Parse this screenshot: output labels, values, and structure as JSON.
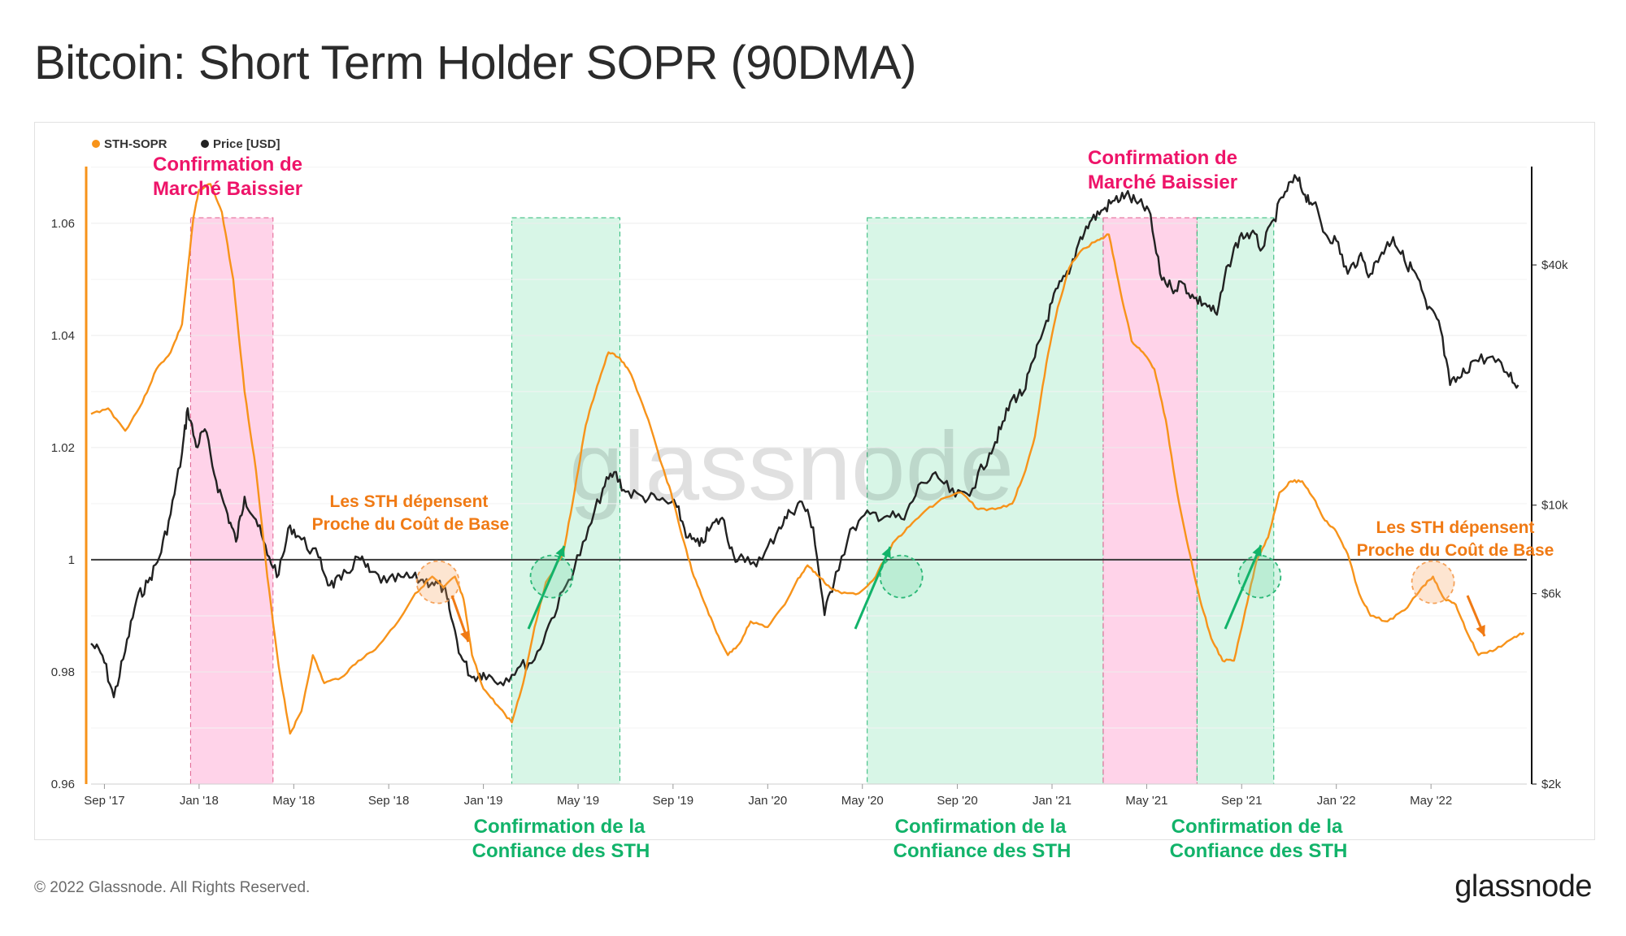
{
  "title": "Bitcoin: Short Term Holder SOPR (90DMA)",
  "footer": {
    "copyright": "© 2022 Glassnode. All Rights Reserved.",
    "brand": "glassnode"
  },
  "watermark": "glassnode",
  "colors": {
    "sopr": "#f7931a",
    "price": "#222222",
    "bear": "#ff9dcf",
    "confidence": "#7ee0ae",
    "red_text": "#ee1469",
    "orange_text": "#f07a14",
    "green_text": "#12b36a"
  },
  "chart_data": {
    "type": "line",
    "legend": [
      {
        "name": "STH-SOPR",
        "color": "#f7931a"
      },
      {
        "name": "Price [USD]",
        "color": "#222222"
      }
    ],
    "x_range": [
      2017.62,
      2022.67
    ],
    "x_ticks": [
      {
        "t": 2017.667,
        "label": "Sep '17"
      },
      {
        "t": 2018.0,
        "label": "Jan '18"
      },
      {
        "t": 2018.333,
        "label": "May '18"
      },
      {
        "t": 2018.667,
        "label": "Sep '18"
      },
      {
        "t": 2019.0,
        "label": "Jan '19"
      },
      {
        "t": 2019.333,
        "label": "May '19"
      },
      {
        "t": 2019.667,
        "label": "Sep '19"
      },
      {
        "t": 2020.0,
        "label": "Jan '20"
      },
      {
        "t": 2020.333,
        "label": "May '20"
      },
      {
        "t": 2020.667,
        "label": "Sep '20"
      },
      {
        "t": 2021.0,
        "label": "Jan '21"
      },
      {
        "t": 2021.333,
        "label": "May '21"
      },
      {
        "t": 2021.667,
        "label": "Sep '21"
      },
      {
        "t": 2022.0,
        "label": "Jan '22"
      },
      {
        "t": 2022.333,
        "label": "May '22"
      }
    ],
    "y_left": {
      "range": [
        0.96,
        1.072
      ],
      "ticks": [
        {
          "v": 0.96,
          "label": "0.96"
        },
        {
          "v": 0.98,
          "label": "0.98"
        },
        {
          "v": 1.0,
          "label": "1"
        },
        {
          "v": 1.02,
          "label": "1.02"
        },
        {
          "v": 1.04,
          "label": "1.04"
        },
        {
          "v": 1.06,
          "label": "1.06"
        }
      ]
    },
    "y_right": {
      "scale": "log",
      "range": [
        2000,
        75000
      ],
      "ticks": [
        {
          "v": 2000,
          "label": "$2k"
        },
        {
          "v": 6000,
          "label": "$6k"
        },
        {
          "v": 10000,
          "label": "$10k"
        },
        {
          "v": 40000,
          "label": "$40k"
        }
      ]
    },
    "reference_line": 1.0,
    "series": [
      {
        "name": "STH-SOPR",
        "axis": "left",
        "points": [
          [
            2017.62,
            1.026
          ],
          [
            2017.68,
            1.027
          ],
          [
            2017.74,
            1.023
          ],
          [
            2017.8,
            1.028
          ],
          [
            2017.85,
            1.034
          ],
          [
            2017.9,
            1.037
          ],
          [
            2017.94,
            1.042
          ],
          [
            2017.98,
            1.061
          ],
          [
            2018.0,
            1.066
          ],
          [
            2018.04,
            1.067
          ],
          [
            2018.08,
            1.062
          ],
          [
            2018.12,
            1.05
          ],
          [
            2018.16,
            1.03
          ],
          [
            2018.2,
            1.016
          ],
          [
            2018.24,
            0.997
          ],
          [
            2018.28,
            0.981
          ],
          [
            2018.32,
            0.969
          ],
          [
            2018.36,
            0.973
          ],
          [
            2018.4,
            0.983
          ],
          [
            2018.44,
            0.978
          ],
          [
            2018.5,
            0.979
          ],
          [
            2018.56,
            0.982
          ],
          [
            2018.62,
            0.984
          ],
          [
            2018.7,
            0.989
          ],
          [
            2018.76,
            0.994
          ],
          [
            2018.82,
            0.997
          ],
          [
            2018.86,
            0.995
          ],
          [
            2018.9,
            0.997
          ],
          [
            2018.93,
            0.993
          ],
          [
            2018.96,
            0.983
          ],
          [
            2019.0,
            0.977
          ],
          [
            2019.05,
            0.974
          ],
          [
            2019.1,
            0.971
          ],
          [
            2019.14,
            0.978
          ],
          [
            2019.18,
            0.988
          ],
          [
            2019.22,
            0.996
          ],
          [
            2019.28,
            1.001
          ],
          [
            2019.32,
            1.012
          ],
          [
            2019.36,
            1.024
          ],
          [
            2019.4,
            1.031
          ],
          [
            2019.44,
            1.037
          ],
          [
            2019.48,
            1.036
          ],
          [
            2019.52,
            1.033
          ],
          [
            2019.58,
            1.025
          ],
          [
            2019.62,
            1.018
          ],
          [
            2019.66,
            1.012
          ],
          [
            2019.7,
            1.004
          ],
          [
            2019.74,
            0.997
          ],
          [
            2019.78,
            0.992
          ],
          [
            2019.82,
            0.987
          ],
          [
            2019.86,
            0.983
          ],
          [
            2019.9,
            0.985
          ],
          [
            2019.94,
            0.989
          ],
          [
            2020.0,
            0.988
          ],
          [
            2020.06,
            0.992
          ],
          [
            2020.1,
            0.996
          ],
          [
            2020.14,
            0.999
          ],
          [
            2020.18,
            0.997
          ],
          [
            2020.22,
            0.995
          ],
          [
            2020.26,
            0.994
          ],
          [
            2020.32,
            0.994
          ],
          [
            2020.38,
            0.997
          ],
          [
            2020.44,
            1.003
          ],
          [
            2020.5,
            1.006
          ],
          [
            2020.56,
            1.009
          ],
          [
            2020.62,
            1.011
          ],
          [
            2020.68,
            1.012
          ],
          [
            2020.74,
            1.009
          ],
          [
            2020.8,
            1.009
          ],
          [
            2020.86,
            1.01
          ],
          [
            2020.9,
            1.015
          ],
          [
            2020.94,
            1.022
          ],
          [
            2020.98,
            1.035
          ],
          [
            2021.02,
            1.045
          ],
          [
            2021.06,
            1.052
          ],
          [
            2021.1,
            1.055
          ],
          [
            2021.16,
            1.057
          ],
          [
            2021.2,
            1.058
          ],
          [
            2021.24,
            1.048
          ],
          [
            2021.28,
            1.039
          ],
          [
            2021.32,
            1.037
          ],
          [
            2021.36,
            1.034
          ],
          [
            2021.4,
            1.025
          ],
          [
            2021.44,
            1.012
          ],
          [
            2021.48,
            1.002
          ],
          [
            2021.52,
            0.993
          ],
          [
            2021.56,
            0.986
          ],
          [
            2021.6,
            0.982
          ],
          [
            2021.64,
            0.982
          ],
          [
            2021.68,
            0.991
          ],
          [
            2021.72,
            1.0
          ],
          [
            2021.76,
            1.004
          ],
          [
            2021.8,
            1.012
          ],
          [
            2021.84,
            1.014
          ],
          [
            2021.88,
            1.014
          ],
          [
            2021.92,
            1.011
          ],
          [
            2021.96,
            1.007
          ],
          [
            2022.0,
            1.005
          ],
          [
            2022.04,
            1.001
          ],
          [
            2022.08,
            0.994
          ],
          [
            2022.12,
            0.99
          ],
          [
            2022.18,
            0.989
          ],
          [
            2022.24,
            0.991
          ],
          [
            2022.3,
            0.995
          ],
          [
            2022.34,
            0.997
          ],
          [
            2022.38,
            0.993
          ],
          [
            2022.42,
            0.992
          ],
          [
            2022.46,
            0.987
          ],
          [
            2022.5,
            0.983
          ],
          [
            2022.56,
            0.984
          ],
          [
            2022.62,
            0.986
          ],
          [
            2022.66,
            0.987
          ]
        ]
      },
      {
        "name": "Price [USD]",
        "axis": "right",
        "points": [
          [
            2017.62,
            4500
          ],
          [
            2017.66,
            4200
          ],
          [
            2017.7,
            3300
          ],
          [
            2017.74,
            4300
          ],
          [
            2017.78,
            5800
          ],
          [
            2017.82,
            6400
          ],
          [
            2017.86,
            7400
          ],
          [
            2017.9,
            9500
          ],
          [
            2017.94,
            13500
          ],
          [
            2017.96,
            17500
          ],
          [
            2017.99,
            14000
          ],
          [
            2018.02,
            15500
          ],
          [
            2018.06,
            11500
          ],
          [
            2018.1,
            9500
          ],
          [
            2018.13,
            8100
          ],
          [
            2018.16,
            10500
          ],
          [
            2018.2,
            9200
          ],
          [
            2018.24,
            7500
          ],
          [
            2018.28,
            6700
          ],
          [
            2018.32,
            8900
          ],
          [
            2018.36,
            8200
          ],
          [
            2018.42,
            7400
          ],
          [
            2018.46,
            6300
          ],
          [
            2018.5,
            6500
          ],
          [
            2018.56,
            7400
          ],
          [
            2018.6,
            6800
          ],
          [
            2018.66,
            6400
          ],
          [
            2018.72,
            6600
          ],
          [
            2018.78,
            6500
          ],
          [
            2018.82,
            6400
          ],
          [
            2018.86,
            6200
          ],
          [
            2018.88,
            5500
          ],
          [
            2018.92,
            4200
          ],
          [
            2018.96,
            3700
          ],
          [
            2019.0,
            3800
          ],
          [
            2019.06,
            3600
          ],
          [
            2019.12,
            3900
          ],
          [
            2019.18,
            4100
          ],
          [
            2019.24,
            5200
          ],
          [
            2019.3,
            6500
          ],
          [
            2019.36,
            8200
          ],
          [
            2019.42,
            11000
          ],
          [
            2019.46,
            12100
          ],
          [
            2019.5,
            10800
          ],
          [
            2019.56,
            10500
          ],
          [
            2019.62,
            10300
          ],
          [
            2019.68,
            9900
          ],
          [
            2019.72,
            8300
          ],
          [
            2019.76,
            7900
          ],
          [
            2019.8,
            8800
          ],
          [
            2019.84,
            9300
          ],
          [
            2019.88,
            7500
          ],
          [
            2019.92,
            7200
          ],
          [
            2019.98,
            7300
          ],
          [
            2020.04,
            8800
          ],
          [
            2020.08,
            9600
          ],
          [
            2020.12,
            10200
          ],
          [
            2020.16,
            8800
          ],
          [
            2020.2,
            5300
          ],
          [
            2020.24,
            6800
          ],
          [
            2020.3,
            8800
          ],
          [
            2020.36,
            9500
          ],
          [
            2020.42,
            9400
          ],
          [
            2020.48,
            9200
          ],
          [
            2020.54,
            11400
          ],
          [
            2020.6,
            11700
          ],
          [
            2020.66,
            10500
          ],
          [
            2020.72,
            11000
          ],
          [
            2020.78,
            13500
          ],
          [
            2020.82,
            15500
          ],
          [
            2020.86,
            18500
          ],
          [
            2020.9,
            19200
          ],
          [
            2020.94,
            23500
          ],
          [
            2020.98,
            29000
          ],
          [
            2021.02,
            35000
          ],
          [
            2021.06,
            38000
          ],
          [
            2021.1,
            47000
          ],
          [
            2021.14,
            52000
          ],
          [
            2021.18,
            55000
          ],
          [
            2021.22,
            58000
          ],
          [
            2021.26,
            60000
          ],
          [
            2021.3,
            57000
          ],
          [
            2021.34,
            55000
          ],
          [
            2021.38,
            38000
          ],
          [
            2021.42,
            35000
          ],
          [
            2021.46,
            36000
          ],
          [
            2021.5,
            33000
          ],
          [
            2021.54,
            32000
          ],
          [
            2021.58,
            30000
          ],
          [
            2021.62,
            40000
          ],
          [
            2021.66,
            47000
          ],
          [
            2021.7,
            48000
          ],
          [
            2021.74,
            44000
          ],
          [
            2021.78,
            52000
          ],
          [
            2021.82,
            61000
          ],
          [
            2021.86,
            66000
          ],
          [
            2021.89,
            60000
          ],
          [
            2021.92,
            57000
          ],
          [
            2021.96,
            48000
          ],
          [
            2022.0,
            46000
          ],
          [
            2022.04,
            38000
          ],
          [
            2022.08,
            42000
          ],
          [
            2022.12,
            38000
          ],
          [
            2022.16,
            43000
          ],
          [
            2022.2,
            47000
          ],
          [
            2022.24,
            41000
          ],
          [
            2022.28,
            38000
          ],
          [
            2022.32,
            31000
          ],
          [
            2022.36,
            29000
          ],
          [
            2022.4,
            20000
          ],
          [
            2022.44,
            21000
          ],
          [
            2022.48,
            23000
          ],
          [
            2022.54,
            23500
          ],
          [
            2022.6,
            21500
          ],
          [
            2022.64,
            20000
          ]
        ]
      }
    ],
    "shaded_regions": [
      {
        "type": "bear",
        "t0": 2017.97,
        "t1": 2018.26
      },
      {
        "type": "confidence",
        "t0": 2019.1,
        "t1": 2019.48
      },
      {
        "type": "confidence",
        "t0": 2020.35,
        "t1": 2021.18
      },
      {
        "type": "bear",
        "t0": 2021.18,
        "t1": 2021.51
      },
      {
        "type": "confidence",
        "t0": 2021.51,
        "t1": 2021.78
      }
    ],
    "annotations": {
      "bear_1": [
        "Confirmation de",
        "Marché Baissier"
      ],
      "bear_2": [
        "Confirmation de",
        "Marché Baissier"
      ],
      "spend_1": [
        "Les STH dépensent",
        "Proche du Coût de Base"
      ],
      "spend_2": [
        "Les STH dépensent",
        "Proche du Coût de Base"
      ],
      "confidence_1": [
        "Confirmation de la",
        "Confiance des STH"
      ],
      "confidence_2": [
        "Confirmation de la",
        "Confiance des STH"
      ],
      "confidence_3": [
        "Confirmation de la",
        "Confiance des STH"
      ]
    }
  }
}
